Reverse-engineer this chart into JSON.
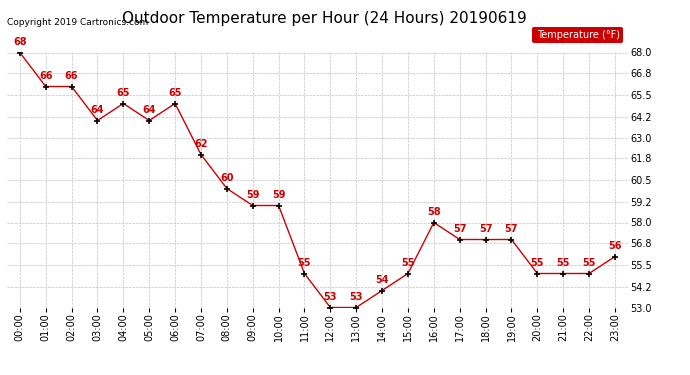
{
  "title": "Outdoor Temperature per Hour (24 Hours) 20190619",
  "copyright_text": "Copyright 2019 Cartronics.com",
  "legend_label": "Temperature (°F)",
  "hours": [
    0,
    1,
    2,
    3,
    4,
    5,
    6,
    7,
    8,
    9,
    10,
    11,
    12,
    13,
    14,
    15,
    16,
    17,
    18,
    19,
    20,
    21,
    22,
    23
  ],
  "hour_labels": [
    "00:00",
    "01:00",
    "02:00",
    "03:00",
    "04:00",
    "05:00",
    "06:00",
    "07:00",
    "08:00",
    "09:00",
    "10:00",
    "11:00",
    "12:00",
    "13:00",
    "14:00",
    "15:00",
    "16:00",
    "17:00",
    "18:00",
    "19:00",
    "20:00",
    "21:00",
    "22:00",
    "23:00"
  ],
  "temperatures": [
    68,
    66,
    66,
    64,
    65,
    64,
    65,
    62,
    60,
    59,
    59,
    55,
    53,
    53,
    54,
    55,
    58,
    57,
    57,
    57,
    55,
    55,
    55,
    56
  ],
  "ylim": [
    53.0,
    68.0
  ],
  "yticks": [
    53.0,
    54.2,
    55.5,
    56.8,
    58.0,
    59.2,
    60.5,
    61.8,
    63.0,
    64.2,
    65.5,
    66.8,
    68.0
  ],
  "line_color": "#cc0000",
  "marker_color": "#000000",
  "label_color": "#cc0000",
  "background_color": "#ffffff",
  "grid_color": "#c0c0c0",
  "legend_bg": "#cc0000",
  "legend_text": "#ffffff",
  "title_fontsize": 11,
  "label_fontsize": 7,
  "axis_fontsize": 7,
  "copyright_fontsize": 6.5
}
